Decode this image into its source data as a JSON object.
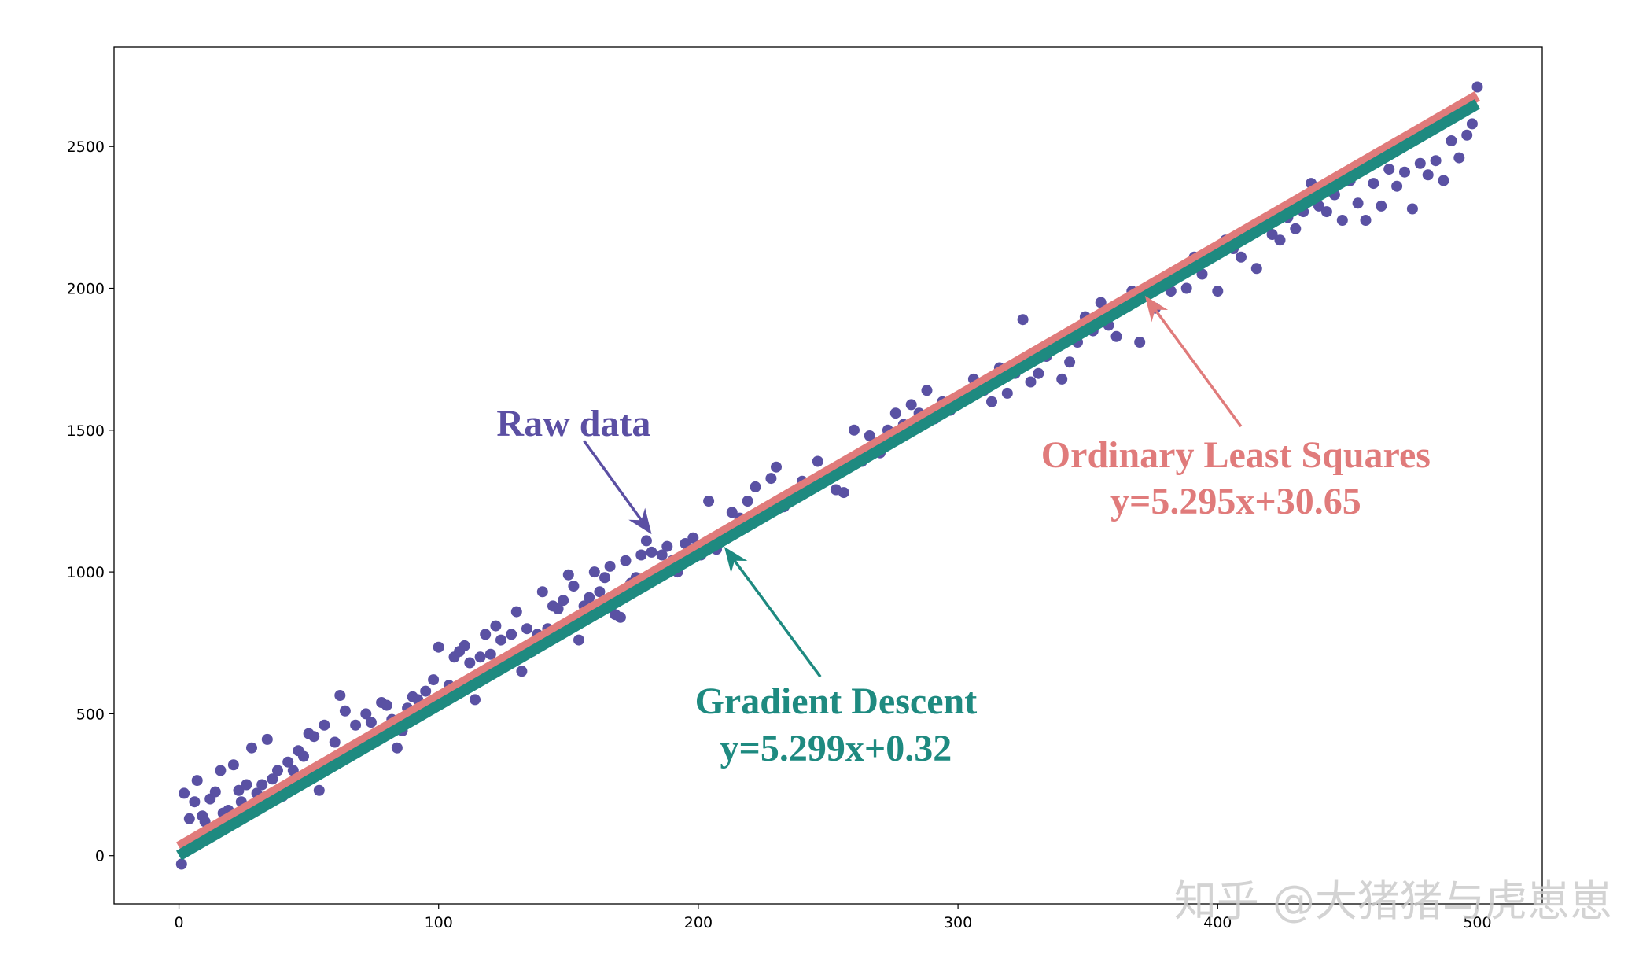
{
  "chart_data": {
    "type": "scatter",
    "title": "",
    "xlabel": "",
    "ylabel": "",
    "xlim": [
      -25,
      525
    ],
    "ylim": [
      -170,
      2850
    ],
    "xticks": [
      0,
      100,
      200,
      300,
      400,
      500
    ],
    "yticks": [
      0,
      500,
      1000,
      1500,
      2000,
      2500
    ],
    "grid": false,
    "series": [
      {
        "name": "Raw data",
        "type": "scatter",
        "color": "#5a51a3",
        "points": [
          [
            1,
            -30
          ],
          [
            2,
            220
          ],
          [
            4,
            130
          ],
          [
            6,
            190
          ],
          [
            7,
            265
          ],
          [
            9,
            140
          ],
          [
            10,
            120
          ],
          [
            12,
            200
          ],
          [
            14,
            225
          ],
          [
            16,
            300
          ],
          [
            17,
            150
          ],
          [
            19,
            160
          ],
          [
            21,
            320
          ],
          [
            23,
            230
          ],
          [
            24,
            190
          ],
          [
            26,
            250
          ],
          [
            28,
            380
          ],
          [
            30,
            220
          ],
          [
            32,
            250
          ],
          [
            34,
            410
          ],
          [
            36,
            270
          ],
          [
            38,
            300
          ],
          [
            40,
            210
          ],
          [
            42,
            330
          ],
          [
            44,
            300
          ],
          [
            46,
            370
          ],
          [
            48,
            350
          ],
          [
            50,
            430
          ],
          [
            52,
            420
          ],
          [
            54,
            230
          ],
          [
            56,
            460
          ],
          [
            58,
            320
          ],
          [
            60,
            400
          ],
          [
            62,
            565
          ],
          [
            64,
            510
          ],
          [
            66,
            380
          ],
          [
            68,
            460
          ],
          [
            70,
            400
          ],
          [
            72,
            500
          ],
          [
            74,
            470
          ],
          [
            76,
            420
          ],
          [
            78,
            540
          ],
          [
            80,
            530
          ],
          [
            82,
            480
          ],
          [
            84,
            380
          ],
          [
            86,
            440
          ],
          [
            88,
            520
          ],
          [
            90,
            560
          ],
          [
            92,
            550
          ],
          [
            95,
            580
          ],
          [
            98,
            620
          ],
          [
            100,
            735
          ],
          [
            102,
            560
          ],
          [
            104,
            600
          ],
          [
            106,
            700
          ],
          [
            108,
            720
          ],
          [
            110,
            740
          ],
          [
            112,
            680
          ],
          [
            114,
            550
          ],
          [
            116,
            700
          ],
          [
            118,
            780
          ],
          [
            120,
            710
          ],
          [
            122,
            810
          ],
          [
            124,
            760
          ],
          [
            126,
            690
          ],
          [
            128,
            780
          ],
          [
            130,
            860
          ],
          [
            132,
            650
          ],
          [
            134,
            800
          ],
          [
            136,
            720
          ],
          [
            138,
            780
          ],
          [
            140,
            930
          ],
          [
            142,
            800
          ],
          [
            144,
            880
          ],
          [
            146,
            870
          ],
          [
            148,
            900
          ],
          [
            150,
            990
          ],
          [
            152,
            950
          ],
          [
            154,
            760
          ],
          [
            156,
            880
          ],
          [
            158,
            910
          ],
          [
            160,
            1000
          ],
          [
            162,
            930
          ],
          [
            164,
            980
          ],
          [
            166,
            1020
          ],
          [
            168,
            850
          ],
          [
            170,
            840
          ],
          [
            172,
            1040
          ],
          [
            174,
            960
          ],
          [
            176,
            980
          ],
          [
            178,
            1060
          ],
          [
            180,
            1110
          ],
          [
            182,
            1070
          ],
          [
            184,
            1000
          ],
          [
            186,
            1060
          ],
          [
            188,
            1090
          ],
          [
            190,
            1040
          ],
          [
            192,
            1000
          ],
          [
            195,
            1100
          ],
          [
            198,
            1120
          ],
          [
            201,
            1060
          ],
          [
            204,
            1250
          ],
          [
            207,
            1080
          ],
          [
            210,
            1140
          ],
          [
            213,
            1210
          ],
          [
            216,
            1190
          ],
          [
            219,
            1250
          ],
          [
            222,
            1300
          ],
          [
            225,
            1200
          ],
          [
            228,
            1330
          ],
          [
            230,
            1370
          ],
          [
            233,
            1230
          ],
          [
            236,
            1270
          ],
          [
            240,
            1320
          ],
          [
            243,
            1300
          ],
          [
            246,
            1390
          ],
          [
            250,
            1340
          ],
          [
            253,
            1290
          ],
          [
            256,
            1280
          ],
          [
            260,
            1500
          ],
          [
            263,
            1390
          ],
          [
            266,
            1480
          ],
          [
            270,
            1420
          ],
          [
            273,
            1500
          ],
          [
            276,
            1560
          ],
          [
            279,
            1520
          ],
          [
            282,
            1590
          ],
          [
            285,
            1560
          ],
          [
            288,
            1640
          ],
          [
            291,
            1540
          ],
          [
            294,
            1600
          ],
          [
            297,
            1570
          ],
          [
            300,
            1590
          ],
          [
            303,
            1620
          ],
          [
            306,
            1680
          ],
          [
            310,
            1640
          ],
          [
            313,
            1600
          ],
          [
            316,
            1720
          ],
          [
            319,
            1630
          ],
          [
            322,
            1700
          ],
          [
            325,
            1890
          ],
          [
            328,
            1670
          ],
          [
            331,
            1700
          ],
          [
            334,
            1760
          ],
          [
            337,
            1800
          ],
          [
            340,
            1680
          ],
          [
            343,
            1740
          ],
          [
            346,
            1810
          ],
          [
            349,
            1900
          ],
          [
            352,
            1850
          ],
          [
            355,
            1950
          ],
          [
            358,
            1870
          ],
          [
            361,
            1830
          ],
          [
            364,
            1930
          ],
          [
            367,
            1990
          ],
          [
            370,
            1810
          ],
          [
            373,
            2000
          ],
          [
            376,
            1930
          ],
          [
            379,
            2020
          ],
          [
            382,
            1990
          ],
          [
            385,
            2060
          ],
          [
            388,
            2000
          ],
          [
            391,
            2110
          ],
          [
            394,
            2050
          ],
          [
            397,
            2120
          ],
          [
            400,
            1990
          ],
          [
            403,
            2170
          ],
          [
            406,
            2140
          ],
          [
            409,
            2110
          ],
          [
            412,
            2200
          ],
          [
            415,
            2070
          ],
          [
            418,
            2240
          ],
          [
            421,
            2190
          ],
          [
            424,
            2170
          ],
          [
            427,
            2250
          ],
          [
            430,
            2210
          ],
          [
            433,
            2270
          ],
          [
            436,
            2370
          ],
          [
            439,
            2290
          ],
          [
            442,
            2270
          ],
          [
            445,
            2330
          ],
          [
            448,
            2240
          ],
          [
            451,
            2380
          ],
          [
            454,
            2300
          ],
          [
            457,
            2240
          ],
          [
            460,
            2370
          ],
          [
            463,
            2290
          ],
          [
            466,
            2420
          ],
          [
            469,
            2360
          ],
          [
            472,
            2410
          ],
          [
            475,
            2280
          ],
          [
            478,
            2440
          ],
          [
            481,
            2400
          ],
          [
            484,
            2450
          ],
          [
            487,
            2380
          ],
          [
            490,
            2520
          ],
          [
            493,
            2460
          ],
          [
            496,
            2540
          ],
          [
            498,
            2580
          ],
          [
            500,
            2710
          ]
        ]
      },
      {
        "name": "Ordinary Least Squares",
        "type": "line",
        "label": "y=5.295x+30.65",
        "slope": 5.295,
        "intercept": 30.65,
        "x_range": [
          0,
          500
        ],
        "color": "#e07b7b"
      },
      {
        "name": "Gradient Descent",
        "type": "line",
        "label": "y=5.299x+0.32",
        "slope": 5.299,
        "intercept": 0.32,
        "x_range": [
          0,
          500
        ],
        "color": "#1e8a80"
      }
    ]
  },
  "watermark": "知乎 @大猪猪与虎崽崽"
}
